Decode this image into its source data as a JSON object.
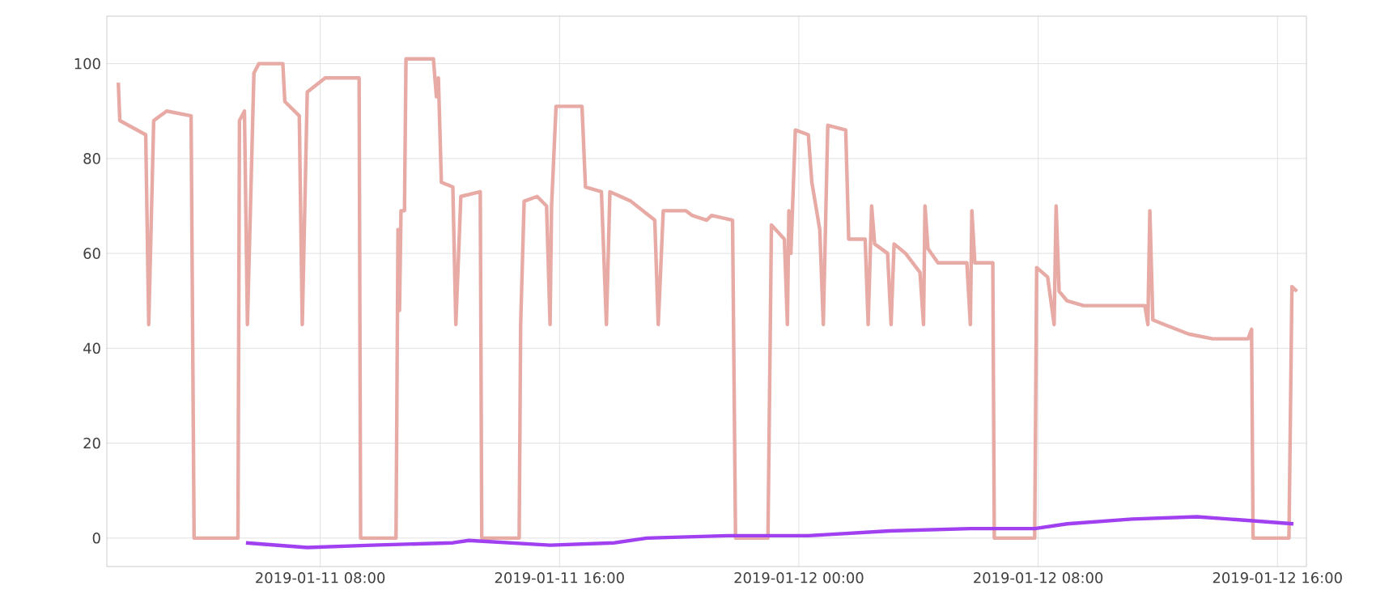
{
  "chart_data": {
    "type": "line",
    "grid": true,
    "marker": "none",
    "line_style": "solid",
    "xlim": [
      "2019-01-11T00:52",
      "2019-01-12T16:58"
    ],
    "xticks": [
      {
        "value": "2019-01-11T08:00",
        "label": "2019-01-11 08:00"
      },
      {
        "value": "2019-01-11T16:00",
        "label": "2019-01-11 16:00"
      },
      {
        "value": "2019-01-12T00:00",
        "label": "2019-01-12 00:00"
      },
      {
        "value": "2019-01-12T08:00",
        "label": "2019-01-12 08:00"
      },
      {
        "value": "2019-01-12T16:00",
        "label": "2019-01-12 16:00"
      }
    ],
    "ylim": [
      -6,
      110
    ],
    "yticks": [
      0,
      20,
      40,
      60,
      80,
      100
    ],
    "series": [
      {
        "color": "#e8aaa5",
        "x": [
          "2019-01-11T01:15",
          "2019-01-11T01:18",
          "2019-01-11T02:10",
          "2019-01-11T02:16",
          "2019-01-11T02:26",
          "2019-01-11T02:52",
          "2019-01-11T03:41",
          "2019-01-11T03:47",
          "2019-01-11T05:15",
          "2019-01-11T05:18",
          "2019-01-11T05:28",
          "2019-01-11T05:34",
          "2019-01-11T05:47",
          "2019-01-11T05:57",
          "2019-01-11T06:45",
          "2019-01-11T06:49",
          "2019-01-11T07:18",
          "2019-01-11T07:24",
          "2019-01-11T07:34",
          "2019-01-11T08:10",
          "2019-01-11T09:18",
          "2019-01-11T09:21",
          "2019-01-11T10:32",
          "2019-01-11T10:36",
          "2019-01-11T10:39",
          "2019-01-11T10:42",
          "2019-01-11T10:49",
          "2019-01-11T10:52",
          "2019-01-11T11:47",
          "2019-01-11T11:53",
          "2019-01-11T11:57",
          "2019-01-11T12:03",
          "2019-01-11T12:26",
          "2019-01-11T12:32",
          "2019-01-11T12:42",
          "2019-01-11T13:21",
          "2019-01-11T13:24",
          "2019-01-11T14:39",
          "2019-01-11T14:42",
          "2019-01-11T14:49",
          "2019-01-11T15:15",
          "2019-01-11T15:34",
          "2019-01-11T15:41",
          "2019-01-11T15:44",
          "2019-01-11T15:53",
          "2019-01-11T16:45",
          "2019-01-11T16:52",
          "2019-01-11T17:24",
          "2019-01-11T17:34",
          "2019-01-11T17:41",
          "2019-01-11T18:23",
          "2019-01-11T19:11",
          "2019-01-11T19:18",
          "2019-01-11T19:28",
          "2019-01-11T20:13",
          "2019-01-11T20:26",
          "2019-01-11T20:55",
          "2019-01-11T21:05",
          "2019-01-11T21:47",
          "2019-01-11T21:53",
          "2019-01-11T22:58",
          "2019-01-11T23:05",
          "2019-01-11T23:31",
          "2019-01-11T23:37",
          "2019-01-11T23:40",
          "2019-01-11T23:44",
          "2019-01-11T23:53",
          "2019-01-12T00:19",
          "2019-01-12T00:26",
          "2019-01-12T00:42",
          "2019-01-12T00:49",
          "2019-01-12T00:58",
          "2019-01-12T01:34",
          "2019-01-12T01:40",
          "2019-01-12T02:13",
          "2019-01-12T02:19",
          "2019-01-12T02:26",
          "2019-01-12T02:32",
          "2019-01-12T02:58",
          "2019-01-12T03:05",
          "2019-01-12T03:11",
          "2019-01-12T03:34",
          "2019-01-12T04:03",
          "2019-01-12T04:10",
          "2019-01-12T04:13",
          "2019-01-12T04:19",
          "2019-01-12T04:39",
          "2019-01-12T05:37",
          "2019-01-12T05:44",
          "2019-01-12T05:47",
          "2019-01-12T05:53",
          "2019-01-12T06:29",
          "2019-01-12T06:32",
          "2019-01-12T07:53",
          "2019-01-12T07:57",
          "2019-01-12T08:19",
          "2019-01-12T08:32",
          "2019-01-12T08:36",
          "2019-01-12T08:42",
          "2019-01-12T08:58",
          "2019-01-12T09:31",
          "2019-01-12T11:34",
          "2019-01-12T11:40",
          "2019-01-12T11:44",
          "2019-01-12T11:50",
          "2019-01-12T12:13",
          "2019-01-12T13:02",
          "2019-01-12T13:50",
          "2019-01-12T15:01",
          "2019-01-12T15:08",
          "2019-01-12T15:11",
          "2019-01-12T16:23",
          "2019-01-12T16:29",
          "2019-01-12T16:39"
        ],
        "values": [
          96,
          88,
          85,
          45,
          88,
          90,
          89,
          0,
          0,
          88,
          90,
          45,
          98,
          100,
          100,
          92,
          89,
          45,
          94,
          97,
          97,
          0,
          0,
          65,
          48,
          69,
          69,
          101,
          101,
          93,
          97,
          75,
          74,
          45,
          72,
          73,
          0,
          0,
          45,
          71,
          72,
          70,
          45,
          70,
          91,
          91,
          74,
          73,
          45,
          73,
          71,
          67,
          45,
          69,
          69,
          68,
          67,
          68,
          67,
          0,
          0,
          66,
          63,
          45,
          69,
          60,
          86,
          85,
          75,
          65,
          45,
          87,
          86,
          63,
          63,
          45,
          70,
          62,
          60,
          45,
          62,
          60,
          56,
          45,
          70,
          61,
          58,
          58,
          45,
          69,
          58,
          58,
          0,
          0,
          57,
          55,
          45,
          70,
          52,
          50,
          49,
          49,
          45,
          69,
          46,
          45,
          43,
          42,
          42,
          44,
          0,
          0,
          53,
          52
        ]
      },
      {
        "color": "#a040f0",
        "x": [
          "2019-01-11T05:31",
          "2019-01-11T07:34",
          "2019-01-11T09:44",
          "2019-01-11T12:26",
          "2019-01-11T12:58",
          "2019-01-11T15:41",
          "2019-01-11T17:50",
          "2019-01-11T18:55",
          "2019-01-11T21:37",
          "2019-01-12T00:19",
          "2019-01-12T03:02",
          "2019-01-12T05:44",
          "2019-01-12T07:53",
          "2019-01-12T08:58",
          "2019-01-12T11:08",
          "2019-01-12T13:18",
          "2019-01-12T14:23",
          "2019-01-12T15:27",
          "2019-01-12T16:32"
        ],
        "values": [
          -1,
          -2,
          -1.5,
          -1,
          -0.5,
          -1.5,
          -1,
          0,
          0.5,
          0.5,
          1.5,
          2,
          2,
          3,
          4,
          4.5,
          4,
          3.5,
          3
        ]
      }
    ]
  }
}
